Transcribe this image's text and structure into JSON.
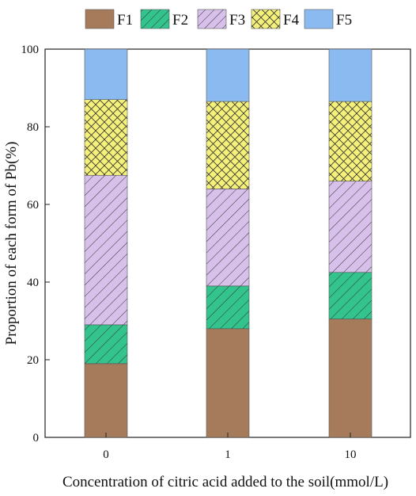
{
  "chart_data": {
    "type": "bar",
    "stacked": true,
    "categories": [
      "0",
      "1",
      "10"
    ],
    "series": [
      {
        "name": "F1",
        "values": [
          19,
          28,
          30.5
        ],
        "color": "#a57b5b",
        "pattern": "solid"
      },
      {
        "name": "F2",
        "values": [
          10,
          11,
          12
        ],
        "color": "#33c48e",
        "pattern": "diagonal"
      },
      {
        "name": "F3",
        "values": [
          38.5,
          25,
          23.5
        ],
        "color": "#d7c0ea",
        "pattern": "diagonal"
      },
      {
        "name": "F4",
        "values": [
          19.5,
          22.5,
          20.5
        ],
        "color": "#f4f07a",
        "pattern": "crosshatch"
      },
      {
        "name": "F5",
        "values": [
          13,
          13.5,
          13.5
        ],
        "color": "#8bbaf0",
        "pattern": "solid"
      }
    ],
    "xlabel": "Concentration of citric acid added to the soil(mmol/L)",
    "ylabel": "Proportion of each form of Pb(%)",
    "ylim": [
      0,
      100
    ],
    "yticks": [
      0,
      20,
      40,
      60,
      80,
      100
    ],
    "legend_position": "top",
    "grid": false
  }
}
